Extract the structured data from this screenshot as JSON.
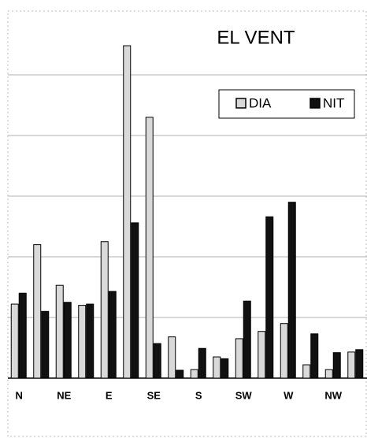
{
  "chart_data": {
    "type": "bar",
    "title": "EL VENT",
    "categories": [
      "N",
      null,
      "NE",
      null,
      "E",
      null,
      "SE",
      null,
      "S",
      null,
      "SW",
      null,
      "W",
      null,
      "NW",
      null
    ],
    "series": [
      {
        "name": "DIA",
        "color": "#d9d9d9",
        "values": [
          12.2,
          22,
          15.3,
          12,
          22.5,
          54.8,
          43,
          6.8,
          1.4,
          3.5,
          6.5,
          7.7,
          9,
          2.2,
          1.4,
          4.3
        ]
      },
      {
        "name": "NIT",
        "color": "#111111",
        "values": [
          14,
          11,
          12.5,
          12.2,
          14.3,
          25.6,
          5.7,
          1.3,
          4.9,
          3.2,
          12.7,
          26.6,
          29,
          7.3,
          4.2,
          4.7
        ]
      }
    ],
    "ylim": [
      0,
      60
    ],
    "yticks": [
      0,
      10,
      20,
      30,
      40,
      50
    ],
    "grid": true,
    "legend": "upper right"
  }
}
